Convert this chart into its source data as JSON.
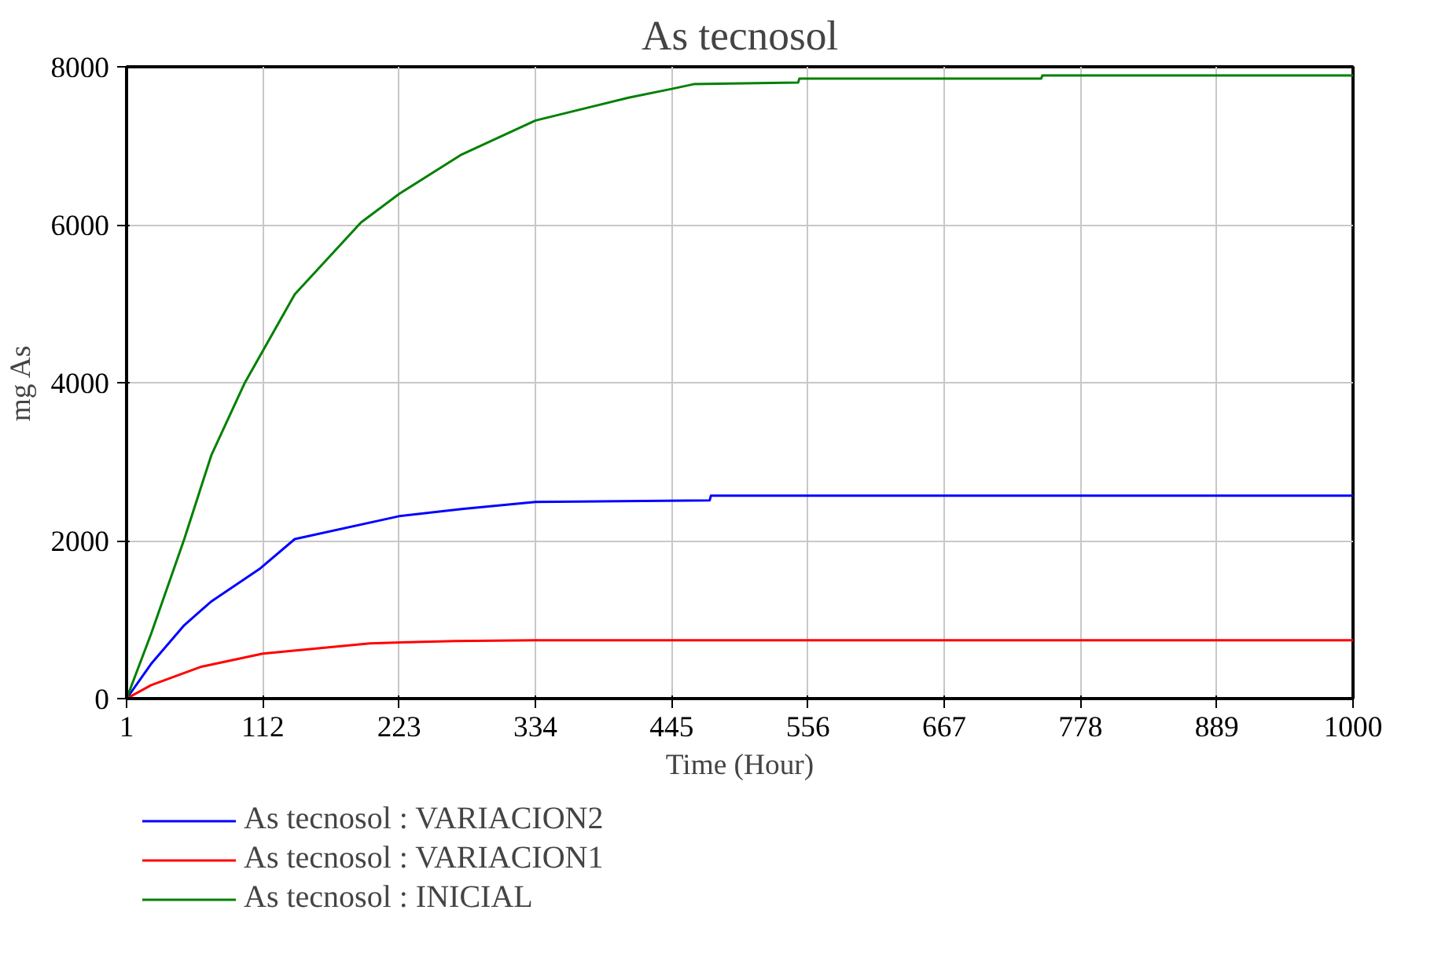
{
  "chart_data": {
    "type": "line",
    "title": "As tecnosol",
    "xlabel": "Time (Hour)",
    "ylabel": "mg As",
    "xlim": [
      1,
      1000
    ],
    "xticks": [
      1,
      112,
      223,
      334,
      445,
      556,
      667,
      778,
      889,
      1000
    ],
    "ylim": [
      0,
      8000
    ],
    "yticks": [
      0,
      2000,
      4000,
      6000,
      8000
    ],
    "grid": true,
    "legend": "bottom",
    "line_style": "solid",
    "marker": "none",
    "series": [
      {
        "name": "As tecnosol : VARIACION2",
        "color": "#0000ff",
        "x": [
          1,
          21,
          48,
          70,
          110,
          138,
          223,
          274,
          334,
          476,
          477,
          1000
        ],
        "values": [
          0,
          440,
          930,
          1230,
          1650,
          2020,
          2310,
          2400,
          2490,
          2510,
          2570,
          2570
        ]
      },
      {
        "name": "As tecnosol : VARIACION1",
        "color": "#ff0000",
        "x": [
          1,
          21,
          61,
          112,
          199,
          269,
          334,
          1000
        ],
        "values": [
          0,
          170,
          400,
          570,
          700,
          730,
          740,
          740
        ]
      },
      {
        "name": "As tecnosol : INICIAL",
        "color": "#008000",
        "x": [
          1,
          21,
          48,
          70,
          97,
          138,
          192,
          223,
          274,
          334,
          410,
          445,
          463,
          548,
          549,
          746,
          747,
          1000
        ],
        "values": [
          0,
          820,
          2020,
          3080,
          3990,
          5120,
          6030,
          6390,
          6890,
          7320,
          7610,
          7720,
          7780,
          7800,
          7850,
          7850,
          7890,
          7890
        ]
      }
    ]
  }
}
